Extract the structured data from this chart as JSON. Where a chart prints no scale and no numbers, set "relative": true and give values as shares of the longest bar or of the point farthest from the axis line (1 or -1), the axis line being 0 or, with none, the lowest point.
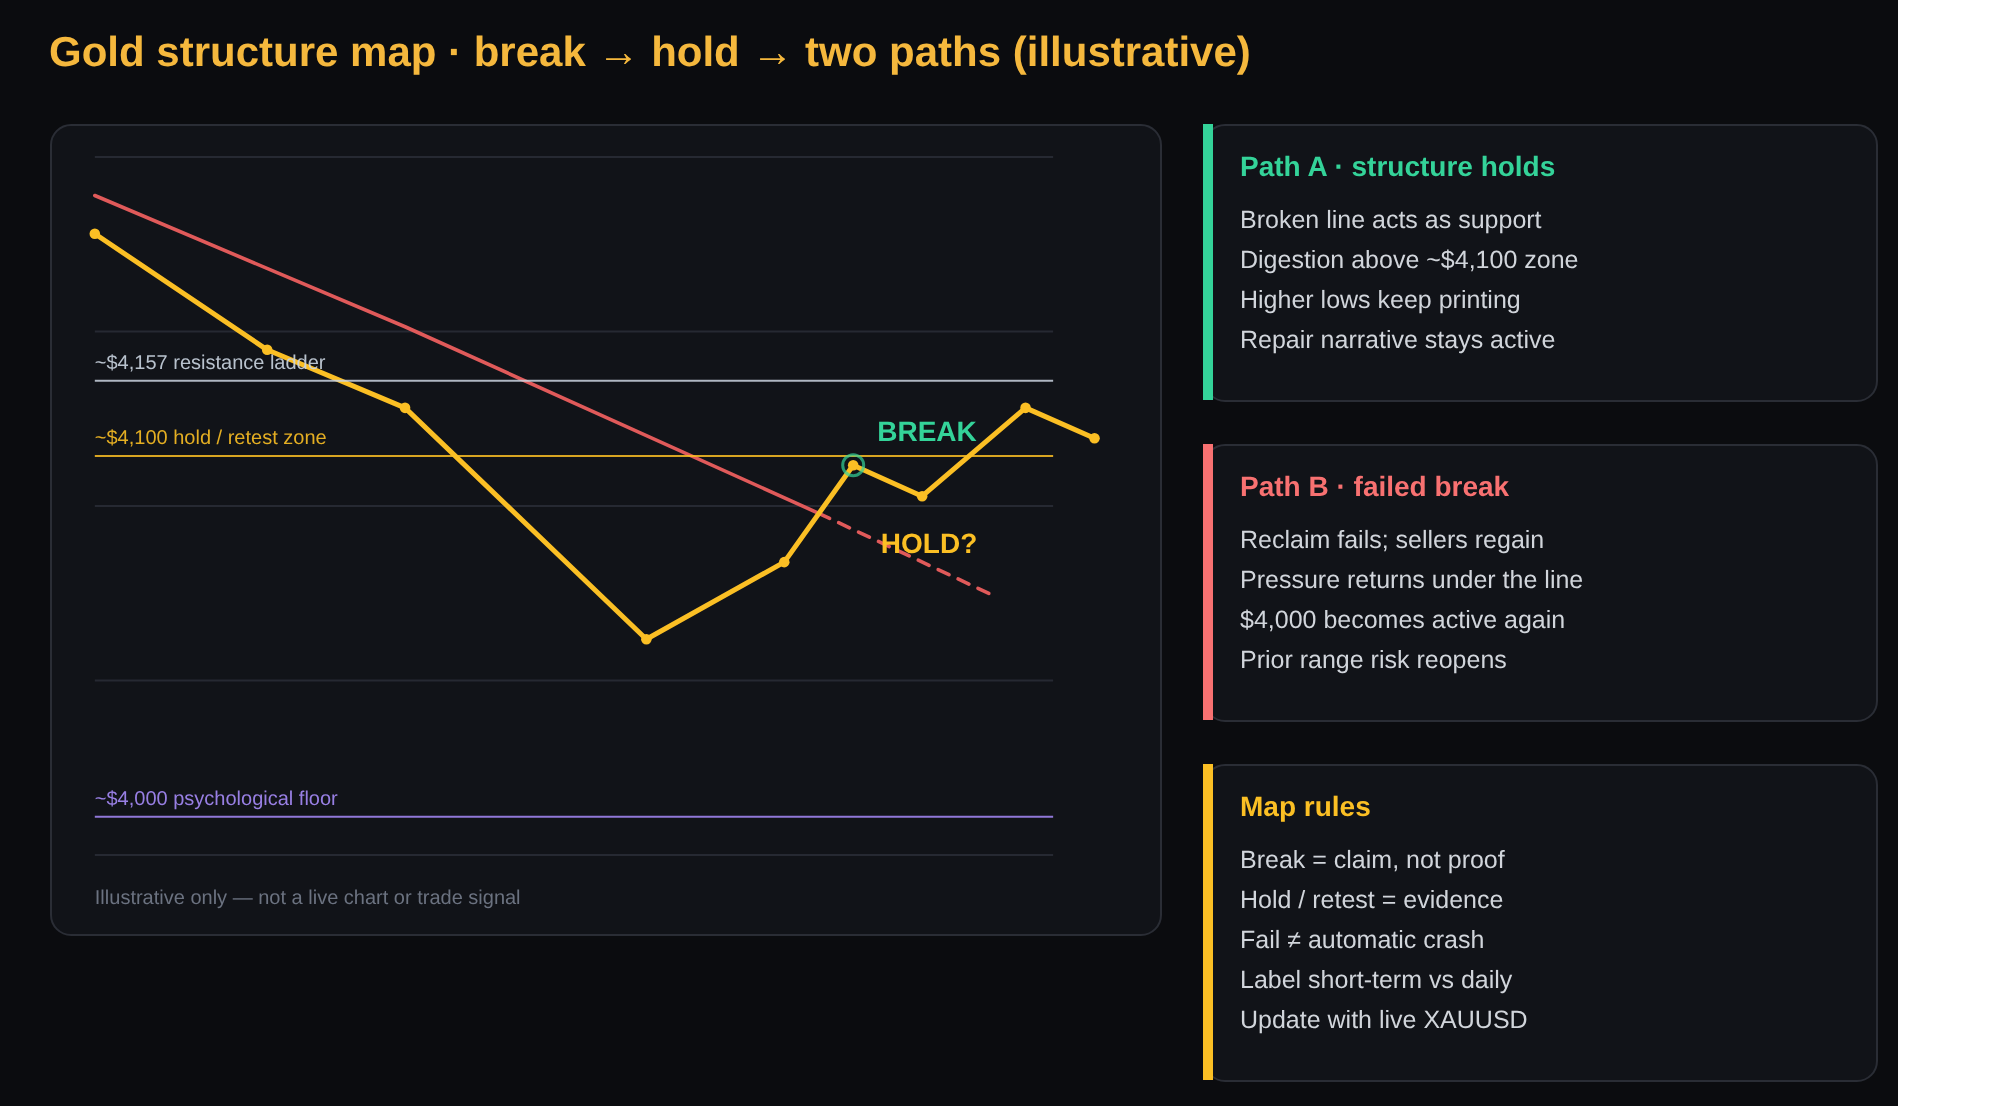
{
  "chart_data": [
    {
      "type": "line",
      "title": "Gold structure map · break → hold → two paths (illustrative)",
      "relative": true,
      "grid": true,
      "marker": "circle",
      "legend": false,
      "categories": [
        null,
        null,
        null,
        null,
        null,
        null,
        null,
        null,
        null,
        null,
        null,
        null,
        null,
        null,
        null,
        null,
        null,
        null,
        null,
        null,
        null,
        null,
        null,
        null,
        null,
        null,
        null,
        null,
        null,
        null
      ],
      "series": [
        {
          "color": "#e05a5a",
          "values": [
            1,
            null,
            null,
            null,
            null,
            null,
            null,
            null,
            null,
            0.801,
            null,
            null,
            null,
            null,
            null,
            null,
            null,
            null,
            null,
            null,
            null,
            0.518,
            null,
            null,
            null,
            null,
            null,
            null,
            null,
            null
          ],
          "marker": "none",
          "line_style": "solid"
        },
        {
          "color": "#e05a5a",
          "values": [
            null,
            null,
            null,
            null,
            null,
            null,
            null,
            null,
            null,
            null,
            null,
            null,
            null,
            null,
            null,
            null,
            null,
            null,
            null,
            null,
            null,
            0.518,
            null,
            null,
            null,
            null,
            0.395,
            null,
            null,
            null
          ],
          "marker": "none",
          "line_style": "dashed"
        },
        {
          "color": "#fbbf24",
          "values": [
            0.942,
            null,
            null,
            null,
            null,
            0.766,
            null,
            null,
            null,
            0.678,
            null,
            null,
            null,
            null,
            null,
            null,
            0.327,
            null,
            null,
            null,
            0.444,
            null,
            0.591,
            null,
            0.544,
            null,
            null,
            0.678,
            null,
            0.632
          ],
          "line_style": "solid"
        }
      ],
      "ref_lines": [
        {
          "axis": "y",
          "value": 0.719,
          "label": "~$4,157 resistance ladder",
          "color": "#cbd5e1"
        },
        {
          "axis": "y",
          "value": 0.605,
          "label": "~$4,100 hold / retest zone",
          "color": "#fbbf24"
        },
        {
          "axis": "y",
          "value": 0.058,
          "label": "~$4,000 psychological floor",
          "color": "#a78bfa"
        }
      ],
      "annotations": [
        "BREAK",
        "HOLD?",
        "Illustrative only — not a live chart or trade signal"
      ]
    },
    {
      "type": "other",
      "title": "Path A · structure holds",
      "color": "#34d399",
      "annotations": [
        "Broken line acts as support",
        "Digestion above ~$4,100 zone",
        "Higher lows keep printing",
        "Repair narrative stays active"
      ]
    },
    {
      "type": "other",
      "title": "Path B · failed break",
      "color": "#f87171",
      "annotations": [
        "Reclaim fails; sellers regain",
        "Pressure returns under the line",
        "$4,000 becomes active again",
        "Prior range risk reopens"
      ]
    },
    {
      "type": "other",
      "title": "Map rules",
      "color": "#fbbf24",
      "annotations": [
        "Break = claim, not proof",
        "Hold / retest = evidence",
        "Fail ≠ automatic crash",
        "Label short-term vs daily",
        "Update with live XAUUSD"
      ]
    }
  ]
}
